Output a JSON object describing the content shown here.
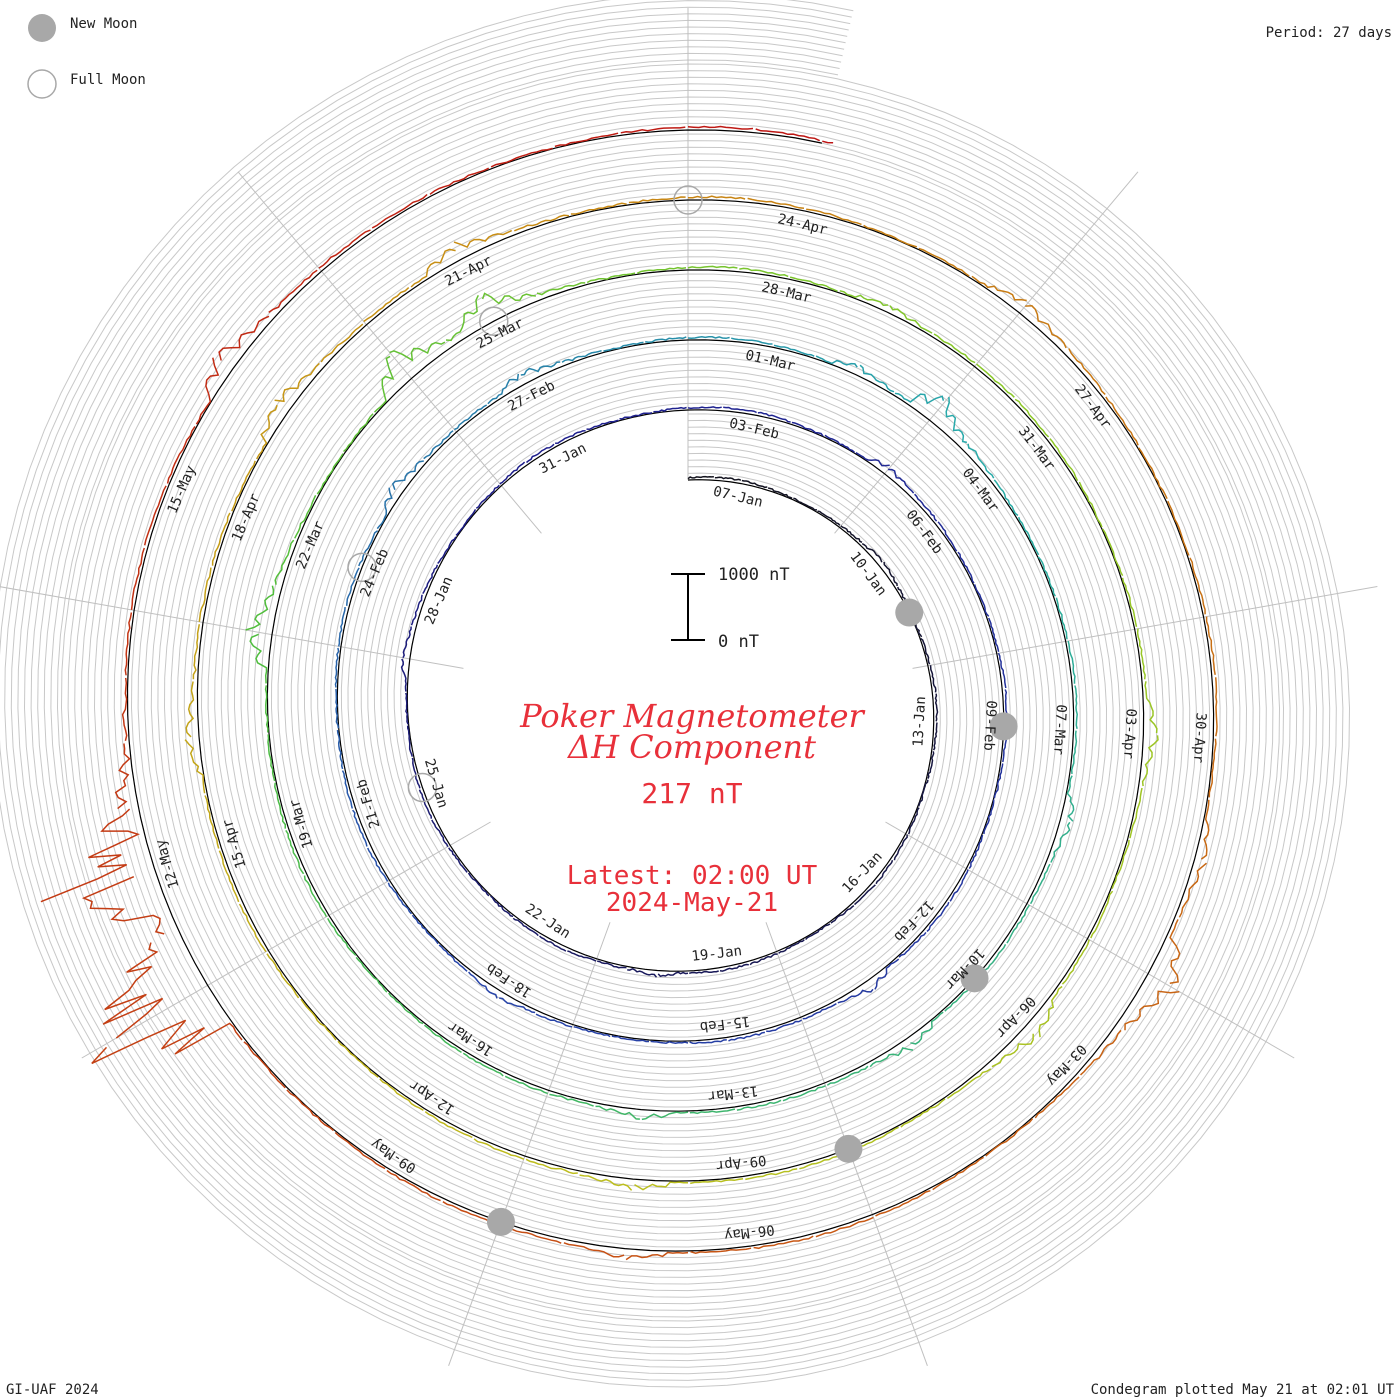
{
  "legend": {
    "new_moon": "New Moon",
    "full_moon": "Full Moon"
  },
  "period_label": "Period: 27 days",
  "footer_left": "GI-UAF 2024",
  "footer_right": "Condegram plotted May 21 at 02:01 UT",
  "center": {
    "title_line1": "Poker Magnetometer",
    "title_line2": "ΔH Component",
    "current_value": "217 nT",
    "latest_line1": "Latest: 02:00 UT",
    "latest_line2": "2024-May-21",
    "color": "#e8303a"
  },
  "chart_data": {
    "type": "line",
    "title": "Poker Magnetometer ΔH Component",
    "period_days": 27,
    "scale_bar": {
      "top_label": "1000 nT",
      "bottom_label": "0 nT",
      "nT": 1000
    },
    "start_date": "2024-01-06",
    "end_date": "2024-05-21",
    "date_labels": [
      "07-Jan",
      "10-Jan",
      "13-Jan",
      "16-Jan",
      "19-Jan",
      "22-Jan",
      "25-Jan",
      "28-Jan",
      "31-Jan",
      "03-Feb",
      "06-Feb",
      "09-Feb",
      "12-Feb",
      "15-Feb",
      "18-Feb",
      "21-Feb",
      "24-Feb",
      "27-Feb",
      "01-Mar",
      "04-Mar",
      "07-Mar",
      "10-Mar",
      "13-Mar",
      "16-Mar",
      "19-Mar",
      "22-Mar",
      "25-Mar",
      "28-Mar",
      "31-Mar",
      "03-Apr",
      "06-Apr",
      "09-Apr",
      "12-Apr",
      "15-Apr",
      "18-Apr",
      "21-Apr",
      "24-Apr",
      "27-Apr",
      "30-Apr",
      "03-May",
      "06-May",
      "09-May",
      "12-May",
      "15-May"
    ],
    "new_moons": [
      "2024-01-11",
      "2024-02-09",
      "2024-03-10",
      "2024-04-08",
      "2024-05-08"
    ],
    "full_moons": [
      "2024-01-25",
      "2024-02-24",
      "2024-03-25",
      "2024-04-23"
    ],
    "events": [
      {
        "date": "2024-01-10",
        "nT": 60
      },
      {
        "date": "2024-01-20",
        "nT": 80
      },
      {
        "date": "2024-01-27",
        "nT": 110
      },
      {
        "date": "2024-02-05",
        "nT": 120
      },
      {
        "date": "2024-02-13",
        "nT": 160
      },
      {
        "date": "2024-02-18",
        "nT": 90
      },
      {
        "date": "2024-02-25",
        "nT": 210
      },
      {
        "date": "2024-02-27",
        "nT": 180
      },
      {
        "date": "2024-03-02",
        "nT": 150
      },
      {
        "date": "2024-03-03",
        "nT": 420
      },
      {
        "date": "2024-03-08",
        "nT": 210
      },
      {
        "date": "2024-03-11",
        "nT": 180
      },
      {
        "date": "2024-03-14",
        "nT": 140
      },
      {
        "date": "2024-03-21",
        "nT": 380
      },
      {
        "date": "2024-03-24",
        "nT": 520
      },
      {
        "date": "2024-03-25",
        "nT": 420
      },
      {
        "date": "2024-03-29",
        "nT": 120
      },
      {
        "date": "2024-04-03",
        "nT": 200
      },
      {
        "date": "2024-04-06",
        "nT": 260
      },
      {
        "date": "2024-04-10",
        "nT": 160
      },
      {
        "date": "2024-04-16",
        "nT": 220
      },
      {
        "date": "2024-04-19",
        "nT": 300
      },
      {
        "date": "2024-04-21",
        "nT": 240
      },
      {
        "date": "2024-04-26",
        "nT": 200
      },
      {
        "date": "2024-05-01",
        "nT": 180
      },
      {
        "date": "2024-05-02",
        "nT": 500
      },
      {
        "date": "2024-05-07",
        "nT": 160
      },
      {
        "date": "2024-05-11",
        "nT": 1400
      },
      {
        "date": "2024-05-12",
        "nT": 900
      },
      {
        "date": "2024-05-16",
        "nT": 360
      }
    ],
    "latest_nT": 217
  }
}
